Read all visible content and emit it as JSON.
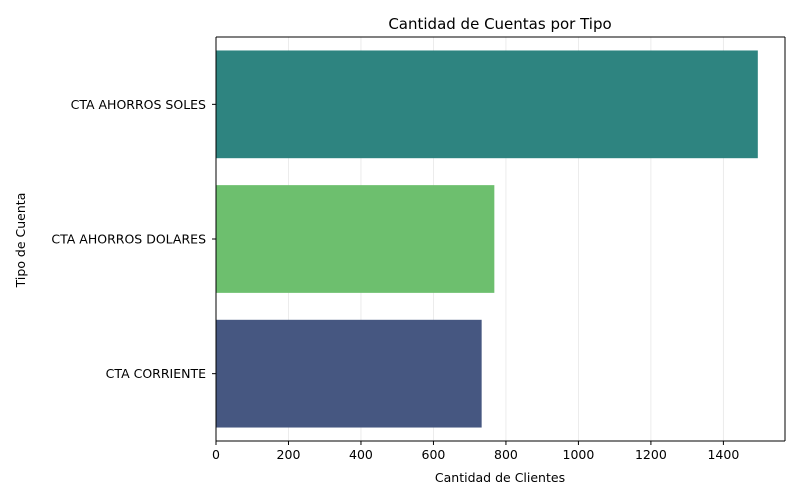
{
  "chart_data": {
    "type": "bar",
    "orientation": "horizontal",
    "title": "Cantidad de Cuentas por Tipo",
    "xlabel": "Cantidad de Clientes",
    "ylabel": "Tipo de Cuenta",
    "categories": [
      "CTA AHORROS SOLES",
      "CTA AHORROS DOLARES",
      "CTA CORRIENTE"
    ],
    "values": [
      1495,
      768,
      733
    ],
    "colors": [
      "#2e8480",
      "#6dbf6e",
      "#465781"
    ],
    "xlim": [
      0,
      1570
    ],
    "xticks": [
      0,
      200,
      400,
      600,
      800,
      1000,
      1200,
      1400
    ],
    "xtick_labels": [
      "0",
      "200",
      "400",
      "600",
      "800",
      "1000",
      "1200",
      "1400"
    ],
    "grid": "x-axis only"
  }
}
